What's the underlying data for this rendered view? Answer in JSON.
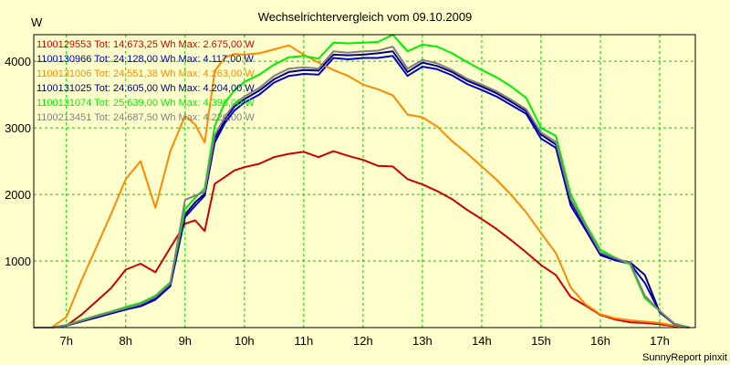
{
  "chart_data": {
    "type": "line",
    "title": "Wechselrichtervergleich vom 09.10.2009",
    "ylabel": "W",
    "footer": "SunnyReport pinxit",
    "x_ticks": [
      {
        "v": 7,
        "label": "7h"
      },
      {
        "v": 8,
        "label": "8h"
      },
      {
        "v": 9,
        "label": "9h"
      },
      {
        "v": 10,
        "label": "10h"
      },
      {
        "v": 11,
        "label": "11h"
      },
      {
        "v": 12,
        "label": "12h"
      },
      {
        "v": 13,
        "label": "13h"
      },
      {
        "v": 14,
        "label": "14h"
      },
      {
        "v": 15,
        "label": "15h"
      },
      {
        "v": 16,
        "label": "16h"
      },
      {
        "v": 17,
        "label": "17h"
      }
    ],
    "y_ticks": [
      {
        "v": 1000,
        "label": "1000"
      },
      {
        "v": 2000,
        "label": "2000"
      },
      {
        "v": 3000,
        "label": "3000"
      },
      {
        "v": 4000,
        "label": "4000"
      }
    ],
    "xlim": [
      6.45,
      17.6
    ],
    "ylim": [
      0,
      4400
    ],
    "grid": true,
    "legend_position": "top-left",
    "x": [
      6.45,
      6.75,
      7.0,
      7.25,
      7.5,
      7.75,
      8.0,
      8.25,
      8.5,
      8.75,
      9.0,
      9.17,
      9.33,
      9.5,
      9.67,
      9.83,
      10.0,
      10.25,
      10.5,
      10.75,
      11.0,
      11.25,
      11.5,
      11.75,
      12.0,
      12.25,
      12.5,
      12.75,
      13.0,
      13.25,
      13.5,
      13.75,
      14.0,
      14.25,
      14.5,
      14.75,
      15.0,
      15.25,
      15.5,
      15.75,
      16.0,
      16.25,
      16.5,
      16.75,
      17.0,
      17.25,
      17.5
    ],
    "series": [
      {
        "name": "1100129553 Tot: 14.673,25 Wh Max: 2.675,00 W",
        "color": "#cc0000",
        "values": [
          0,
          0,
          30,
          190,
          390,
          590,
          870,
          960,
          830,
          1200,
          1560,
          1610,
          1450,
          2160,
          2260,
          2360,
          2410,
          2460,
          2560,
          2610,
          2640,
          2560,
          2650,
          2580,
          2520,
          2430,
          2420,
          2230,
          2150,
          2050,
          1930,
          1770,
          1630,
          1480,
          1310,
          1130,
          940,
          790,
          460,
          330,
          190,
          120,
          80,
          70,
          50,
          20,
          0
        ]
      },
      {
        "name": "1100130966 Tot: 24.128,00 Wh Max: 4.117,00 W",
        "color": "#0000cc",
        "values": [
          0,
          0,
          30,
          90,
          150,
          210,
          270,
          320,
          420,
          620,
          1660,
          1830,
          1980,
          2780,
          3070,
          3260,
          3380,
          3500,
          3680,
          3780,
          3810,
          3800,
          4050,
          4030,
          4050,
          4050,
          4080,
          3780,
          3920,
          3880,
          3790,
          3660,
          3570,
          3470,
          3340,
          3210,
          2840,
          2700,
          1830,
          1470,
          1090,
          1010,
          960,
          670,
          230,
          50,
          0
        ]
      },
      {
        "name": "1100131006 Tot: 24.551,38 Wh Max: 4.263,00 W",
        "color": "#ff8800",
        "values": [
          0,
          0,
          160,
          700,
          1200,
          1700,
          2230,
          2500,
          1800,
          2650,
          3180,
          3050,
          2780,
          3850,
          4060,
          4110,
          4100,
          4120,
          4180,
          4240,
          4100,
          3980,
          3870,
          3780,
          3650,
          3580,
          3490,
          3200,
          3160,
          3020,
          2800,
          2620,
          2420,
          2220,
          1990,
          1730,
          1420,
          1120,
          600,
          350,
          200,
          140,
          110,
          90,
          70,
          30,
          0
        ]
      },
      {
        "name": "1100131025 Tot: 24.605,00 Wh Max: 4.204,00 W",
        "color": "#000080",
        "values": [
          0,
          0,
          30,
          90,
          160,
          220,
          280,
          340,
          450,
          650,
          1700,
          1880,
          2010,
          2840,
          3120,
          3320,
          3430,
          3560,
          3730,
          3840,
          3870,
          3860,
          4100,
          4090,
          4100,
          4120,
          4150,
          3840,
          3980,
          3930,
          3840,
          3710,
          3620,
          3520,
          3390,
          3250,
          2900,
          2750,
          1890,
          1510,
          1110,
          1030,
          980,
          790,
          230,
          50,
          0
        ]
      },
      {
        "name": "1100131074 Tot: 25.639,00 Wh Max: 4.398,00 W",
        "color": "#00ee00",
        "values": [
          0,
          0,
          40,
          110,
          180,
          240,
          310,
          370,
          480,
          680,
          1780,
          1950,
          2090,
          3030,
          3380,
          3560,
          3690,
          3800,
          3950,
          4060,
          4080,
          4040,
          4280,
          4270,
          4280,
          4290,
          4398,
          4150,
          4250,
          4220,
          4120,
          3990,
          3870,
          3760,
          3620,
          3450,
          3000,
          2880,
          2000,
          1560,
          1170,
          1050,
          950,
          440,
          250,
          60,
          0
        ]
      },
      {
        "name": "1100213451 Tot: 24.687,50 Wh Max: 4.220,00 W",
        "color": "#808080",
        "values": [
          0,
          0,
          35,
          100,
          170,
          230,
          290,
          350,
          460,
          660,
          1920,
          1980,
          2040,
          2890,
          3160,
          3360,
          3470,
          3600,
          3780,
          3890,
          3910,
          3890,
          4150,
          4130,
          4150,
          4160,
          4220,
          3890,
          4020,
          3970,
          3870,
          3740,
          3650,
          3550,
          3420,
          3280,
          2930,
          2790,
          1930,
          1530,
          1130,
          1040,
          970,
          480,
          250,
          55,
          0
        ]
      }
    ]
  }
}
